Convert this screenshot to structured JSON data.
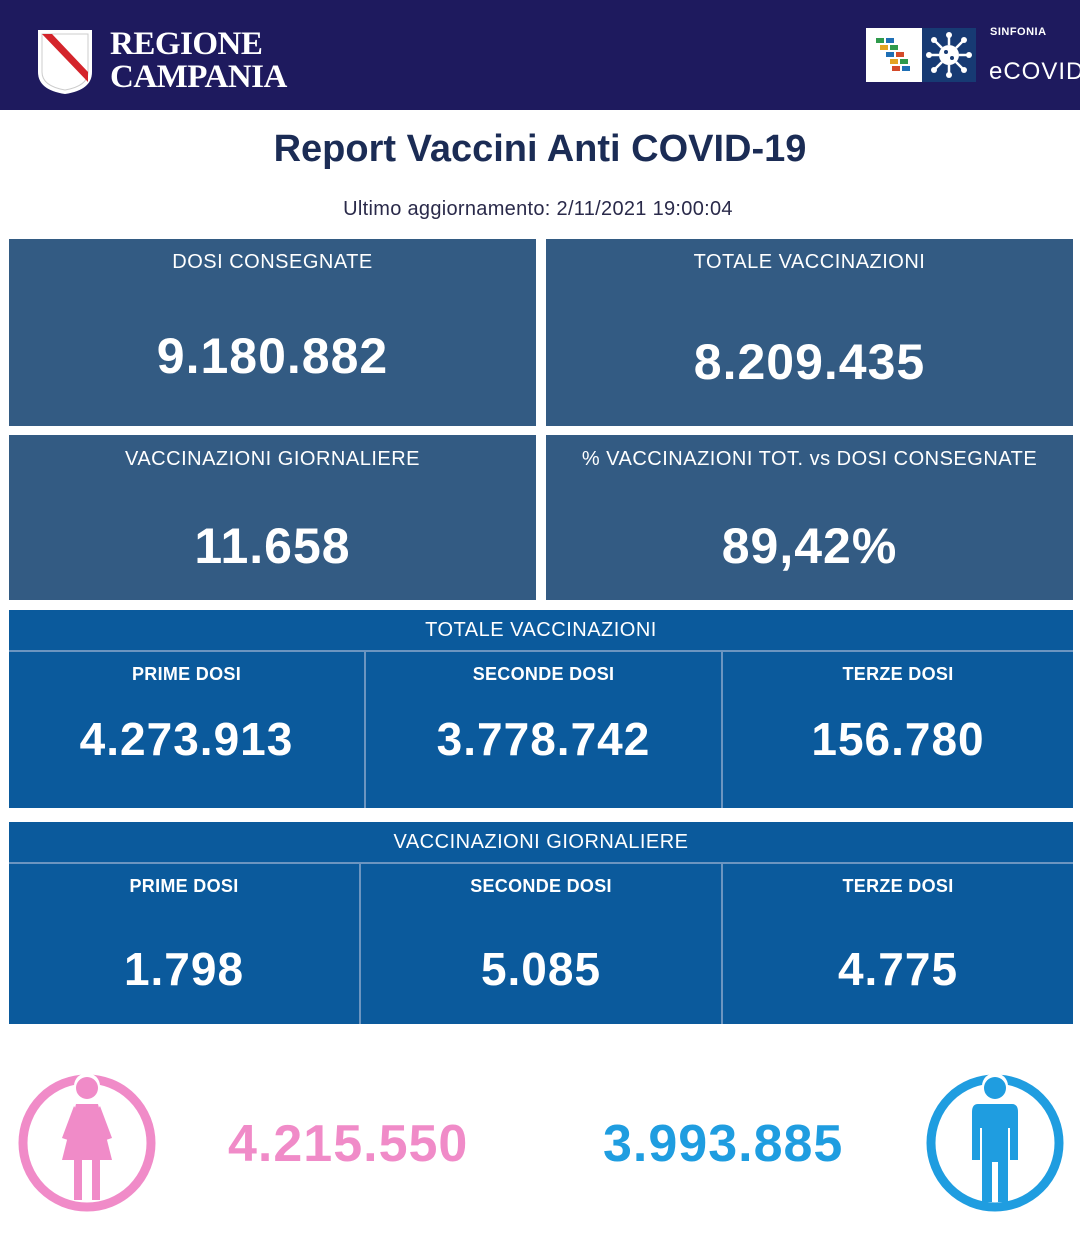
{
  "header": {
    "logo_line1": "REGIONE",
    "logo_line2": "CAMPANIA",
    "brand_small": "SINFONIA",
    "brand_main": "eCOVID"
  },
  "title": "Report Vaccini Anti COVID-19",
  "last_update": "Ultimo aggiornamento: 2/11/2021  19:00:04",
  "cards": {
    "dosi_consegnate": {
      "label": "DOSI  CONSEGNATE",
      "value": "9.180.882"
    },
    "totale_vaccinazioni": {
      "label": "TOTALE VACCINAZIONI",
      "value": "8.209.435"
    },
    "vaccinazioni_giornaliere": {
      "label": "VACCINAZIONI GIORNALIERE",
      "value": "11.658"
    },
    "percentuale": {
      "label": "% VACCINAZIONI TOT. vs DOSI CONSEGNATE",
      "value": "89,42%"
    }
  },
  "totale_section": {
    "title": "TOTALE VACCINAZIONI",
    "prime": {
      "label": "PRIME DOSI",
      "value": "4.273.913"
    },
    "seconde": {
      "label": "SECONDE DOSI",
      "value": "3.778.742"
    },
    "terze": {
      "label": "TERZE DOSI",
      "value": "156.780"
    }
  },
  "giornaliere_section": {
    "title": "VACCINAZIONI GIORNALIERE",
    "prime": {
      "label": "PRIME DOSI",
      "value": "1.798"
    },
    "seconde": {
      "label": "SECONDE DOSI",
      "value": "5.085"
    },
    "terze": {
      "label": "TERZE DOSI",
      "value": "4.775"
    }
  },
  "gender": {
    "female_value": "4.215.550",
    "male_value": "3.993.885",
    "female_color": "#f08bc8",
    "male_color": "#1f9de0"
  }
}
